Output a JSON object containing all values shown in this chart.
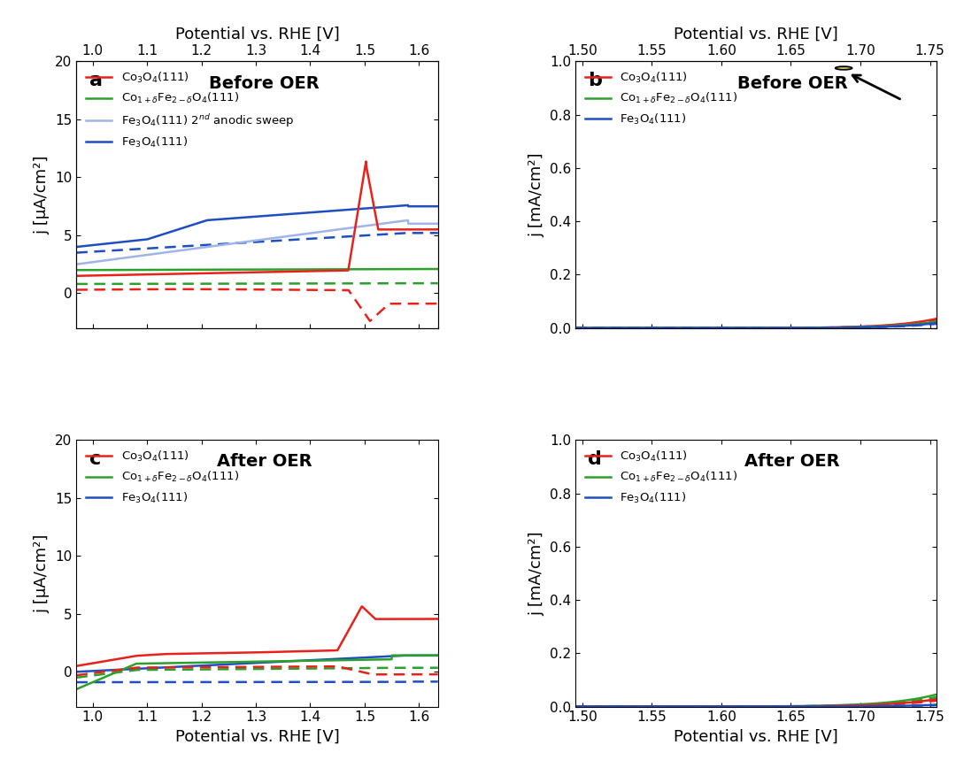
{
  "colors": {
    "red": "#E8221B",
    "green": "#2CA02C",
    "blue": "#1F4FBF",
    "light_blue": "#9FB4E8"
  },
  "panel_a": {
    "title": "Before OER",
    "label": "a",
    "xlim": [
      0.97,
      1.635
    ],
    "ylim": [
      -3,
      20
    ],
    "xlabel": "Potential vs. RHE [V]",
    "ylabel": "j [μA/cm²]",
    "yticks": [
      0,
      5,
      10,
      15,
      20
    ],
    "xticks": [
      1.0,
      1.1,
      1.2,
      1.3,
      1.4,
      1.5,
      1.6
    ]
  },
  "panel_b": {
    "title": "Before OER",
    "label": "b",
    "xlim": [
      1.495,
      1.755
    ],
    "ylim": [
      0.0,
      1.0
    ],
    "xlabel": "Potential vs. RHE [V]",
    "ylabel": "j [mA/cm²]",
    "yticks": [
      0.0,
      0.2,
      0.4,
      0.6,
      0.8,
      1.0
    ],
    "xticks": [
      1.5,
      1.55,
      1.6,
      1.65,
      1.7,
      1.75
    ]
  },
  "panel_c": {
    "title": "After OER",
    "label": "c",
    "xlim": [
      0.97,
      1.635
    ],
    "ylim": [
      -3,
      20
    ],
    "xlabel": "Potential vs. RHE [V]",
    "ylabel": "j [μA/cm²]",
    "yticks": [
      0,
      5,
      10,
      15,
      20
    ],
    "xticks": [
      1.0,
      1.1,
      1.2,
      1.3,
      1.4,
      1.5,
      1.6
    ]
  },
  "panel_d": {
    "title": "After OER",
    "label": "d",
    "xlim": [
      1.495,
      1.755
    ],
    "ylim": [
      0.0,
      1.0
    ],
    "xlabel": "Potential vs. RHE [V]",
    "ylabel": "j [mA/cm²]",
    "yticks": [
      0.0,
      0.2,
      0.4,
      0.6,
      0.8,
      1.0
    ],
    "xticks": [
      1.5,
      1.55,
      1.6,
      1.65,
      1.7,
      1.75
    ]
  }
}
